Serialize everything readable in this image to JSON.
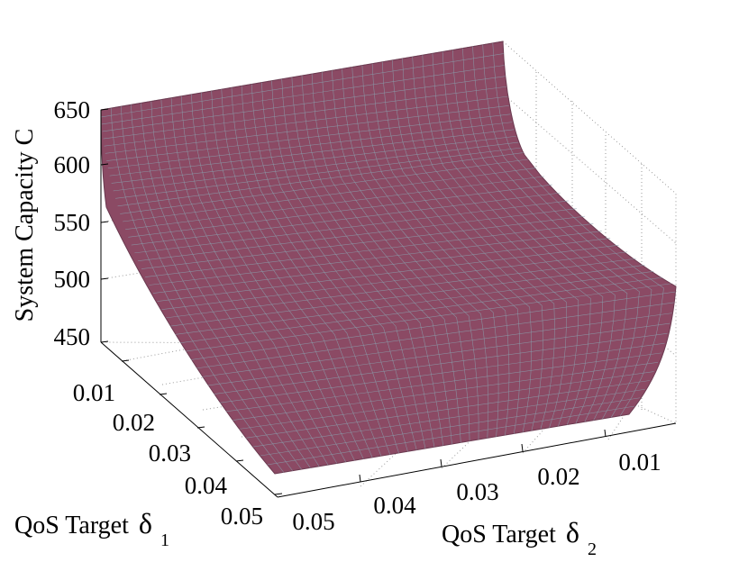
{
  "chart_data": {
    "type": "surface",
    "title": "",
    "zlabel": "System Capacity C",
    "xlabel_text": "QoS Target",
    "xlabel_symbol": "δ",
    "xlabel_sub": "1",
    "ylabel_text": "QoS Target",
    "ylabel_symbol": "δ",
    "ylabel_sub": "2",
    "z_ticks": [
      "450",
      "500",
      "550",
      "600",
      "650"
    ],
    "x_ticks": [
      "0.01",
      "0.02",
      "0.03",
      "0.04",
      "0.05"
    ],
    "y_ticks": [
      "0.05",
      "0.04",
      "0.03",
      "0.02",
      "0.01"
    ],
    "zlim": [
      450,
      650
    ],
    "grid": true,
    "surface_color": "#8b4a64",
    "mesh_color": "#8a9aa8"
  }
}
